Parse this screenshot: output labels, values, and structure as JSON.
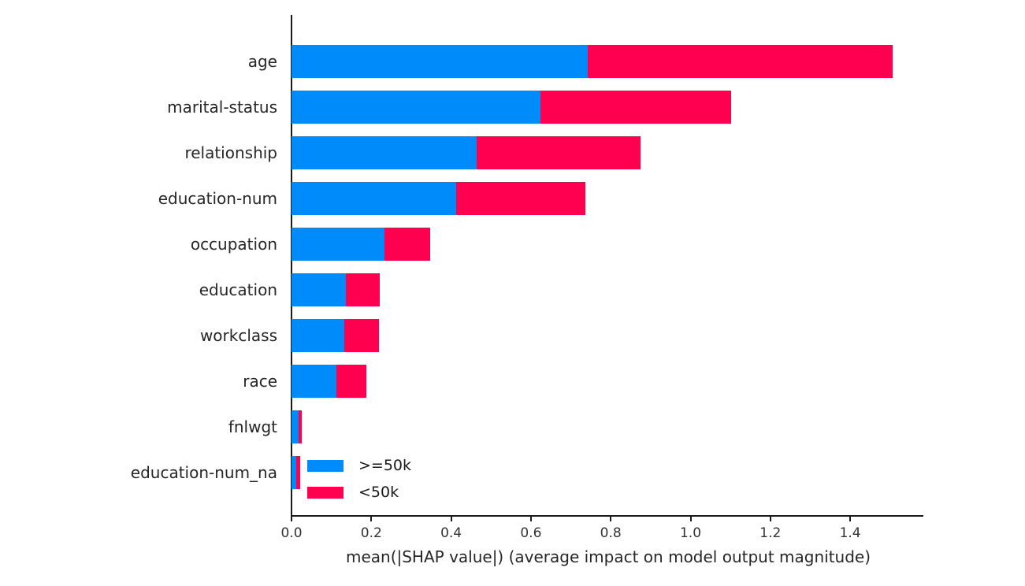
{
  "chart_data": {
    "type": "bar",
    "orientation": "horizontal",
    "stacked": true,
    "title": "",
    "xlabel": "mean(|SHAP value|) (average impact on model output magnitude)",
    "ylabel": "",
    "categories": [
      "age",
      "marital-status",
      "relationship",
      "education-num",
      "occupation",
      "education",
      "workclass",
      "race",
      "fnlwgt",
      "education-num_na"
    ],
    "series": [
      {
        "name": ">=50k",
        "color": "#008bfb",
        "values": [
          0.742,
          0.624,
          0.463,
          0.413,
          0.233,
          0.137,
          0.133,
          0.113,
          0.018,
          0.012
        ]
      },
      {
        "name": "<50k",
        "color": "#ff0051",
        "values": [
          0.764,
          0.477,
          0.411,
          0.324,
          0.114,
          0.085,
          0.086,
          0.075,
          0.008,
          0.01
        ]
      }
    ],
    "totals": [
      1.506,
      1.101,
      0.874,
      0.737,
      0.347,
      0.222,
      0.219,
      0.188,
      0.026,
      0.022
    ],
    "x_ticks": [
      0.0,
      0.2,
      0.4,
      0.6,
      0.8,
      1.0,
      1.2,
      1.4
    ],
    "x_tick_labels": [
      "0.0",
      "0.2",
      "0.4",
      "0.6",
      "0.8",
      "1.0",
      "1.2",
      "1.4"
    ],
    "xlim": [
      0,
      1.583
    ],
    "grid": false,
    "legend_position": "lower-left-inside"
  },
  "legend": {
    "entries": [
      {
        "label": ">=50k",
        "color": "#008bfb"
      },
      {
        "label": "<50k",
        "color": "#ff0051"
      }
    ]
  },
  "colors": {
    "ge50k_blue": "#008bfb",
    "lt50k_red": "#ff0051",
    "axis": "#1a1a1a",
    "tick_text": "#333333",
    "label_text": "#262626",
    "background": "#ffffff"
  }
}
